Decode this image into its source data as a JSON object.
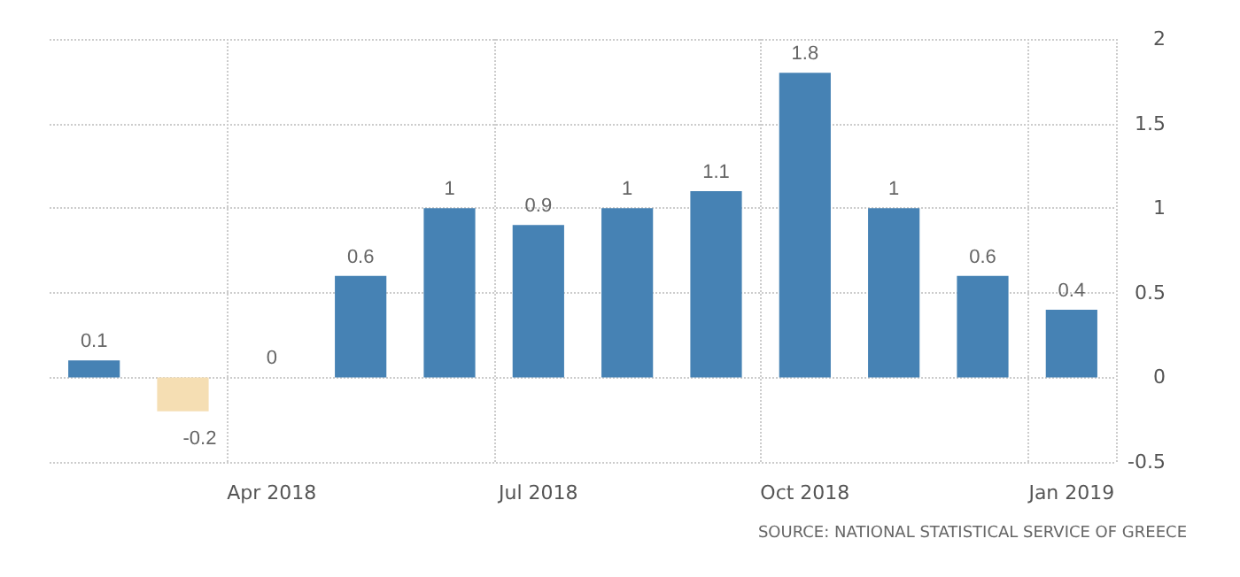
{
  "chart_data": {
    "type": "bar",
    "categories": [
      null,
      null,
      "Apr 2018",
      null,
      null,
      "Jul 2018",
      null,
      null,
      "Oct 2018",
      null,
      null,
      "Jan 2019"
    ],
    "values": [
      0.1,
      -0.2,
      0,
      0.6,
      1,
      0.9,
      1,
      1.1,
      1.8,
      1,
      0.6,
      0.4
    ],
    "colors": [
      "#4682b4",
      "#f5deb3",
      "#4682b4",
      "#4682b4",
      "#4682b4",
      "#4682b4",
      "#4682b4",
      "#4682b4",
      "#4682b4",
      "#4682b4",
      "#4682b4",
      "#4682b4"
    ],
    "ylim": [
      -0.5,
      2
    ],
    "yticks": [
      -0.5,
      0,
      0.5,
      1,
      1.5,
      2
    ],
    "grid": true,
    "data_labels": true,
    "annotations": [
      "SOURCE: NATIONAL STATISTICAL SERVICE OF GREECE"
    ]
  }
}
